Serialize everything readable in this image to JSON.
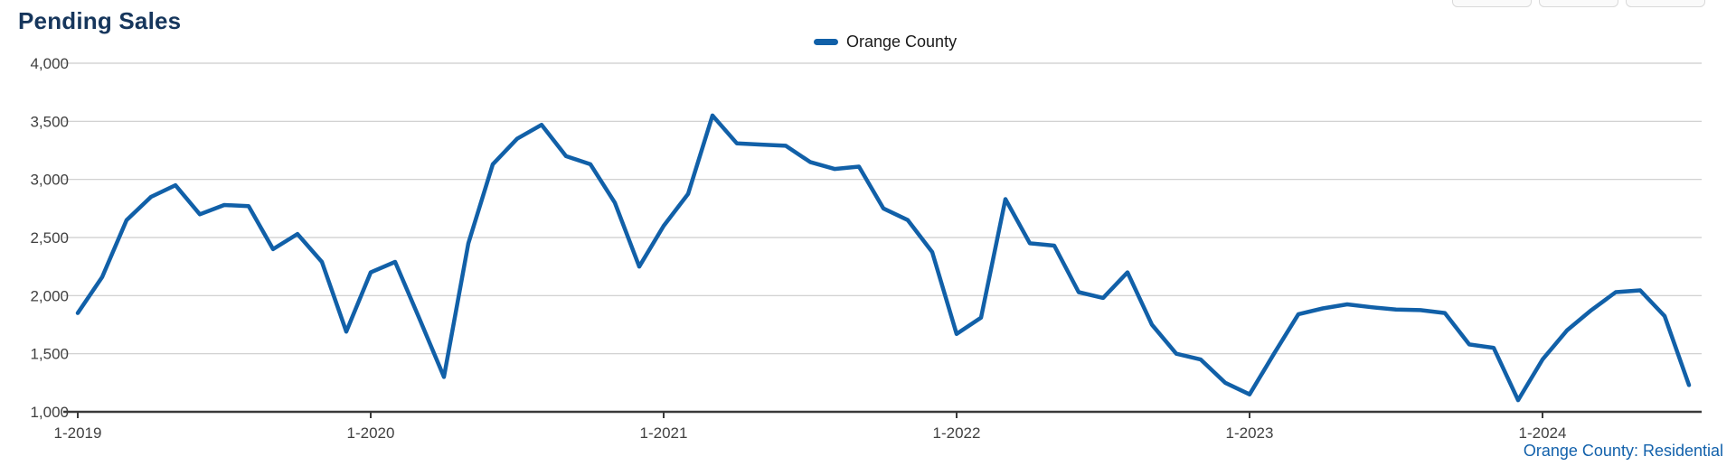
{
  "title": "Pending Sales",
  "legend": {
    "series_label": "Orange County"
  },
  "footer": {
    "label": "Orange County: Residential"
  },
  "colors": {
    "line": "#1160A8",
    "title": "#16365C",
    "footer_link": "#1261AB",
    "grid": "#CCCCCC",
    "axis_line": "#3A3A3A",
    "axis_text": "#404040"
  },
  "chart_data": {
    "type": "line",
    "title": "Pending Sales",
    "x_interval": "monthly",
    "x_start": "1-2019",
    "x_end": "7-2024",
    "x_tick_labels": [
      "1-2019",
      "1-2020",
      "1-2021",
      "1-2022",
      "1-2023",
      "1-2024"
    ],
    "months_per_tick": 12,
    "ylim": [
      1000,
      4000
    ],
    "y_ticks": [
      4000,
      3500,
      3000,
      2500,
      2000,
      1500,
      1000
    ],
    "grid": "horizontal",
    "legend_position": "top-center",
    "series": [
      {
        "name": "Orange County",
        "color": "#1160A8",
        "values": [
          1850,
          2160,
          2650,
          2850,
          2950,
          2700,
          2780,
          2770,
          2400,
          2530,
          2290,
          1690,
          2200,
          2290,
          1800,
          1300,
          2450,
          3130,
          3350,
          3470,
          3200,
          3130,
          2800,
          2250,
          2600,
          2875,
          3550,
          3310,
          3300,
          3290,
          3150,
          3090,
          3110,
          2750,
          2650,
          2375,
          1670,
          1810,
          2830,
          2450,
          2430,
          2030,
          1980,
          2200,
          1750,
          1500,
          1450,
          1250,
          1150,
          1500,
          1840,
          1890,
          1925,
          1900,
          1880,
          1875,
          1850,
          1580,
          1550,
          1100,
          1450,
          1700,
          1875,
          2030,
          2045,
          1825,
          1230
        ]
      }
    ]
  }
}
